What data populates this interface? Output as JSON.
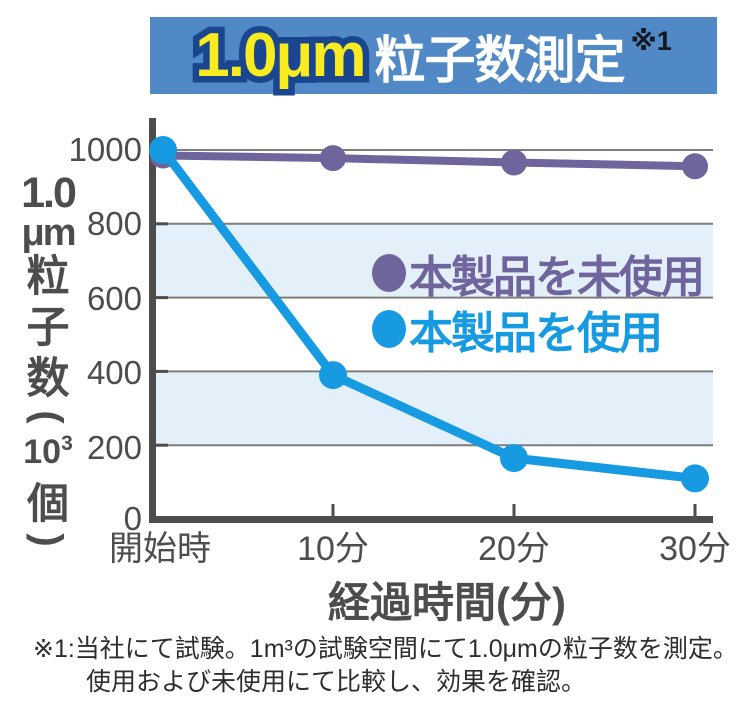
{
  "title": {
    "highlight": "1.0μm",
    "text": "粒子数測定",
    "note_ref": "※1"
  },
  "colors": {
    "banner_bg": "#5189c7",
    "banner_outline": "#1a468f",
    "highlight_yellow": "#f8ec20",
    "title_white": "#ffffff",
    "note_dark": "#14181f",
    "unused_purple": "#6f649c",
    "used_blue": "#169ae1",
    "band_blue": "#e4f0f9",
    "grid_gray": "#7d7d7d",
    "axis_gray": "#4d4d4d",
    "text_gray": "#4d4d4d",
    "footnote_dark": "#2e2e2e"
  },
  "chart_data": {
    "type": "line",
    "title": "1.0μm 粒子数測定 ※1",
    "categories": [
      "開始時",
      "10分",
      "20分",
      "30分"
    ],
    "series": [
      {
        "name": "本製品を未使用",
        "color_key": "unused_purple",
        "values": [
          985,
          978,
          966,
          956
        ]
      },
      {
        "name": "本製品を使用",
        "color_key": "used_blue",
        "values": [
          1000,
          390,
          165,
          110
        ]
      }
    ],
    "xlabel": "経過時間(分)",
    "ylabel": "1.0μm 粒子数(10³個)",
    "ylim": [
      0,
      1080
    ],
    "yticks": [
      0,
      200,
      400,
      600,
      800,
      1000
    ],
    "shaded_bands": [
      [
        600,
        800
      ],
      [
        200,
        400
      ]
    ],
    "grid": "horizontal",
    "legend_position": "inside-right"
  },
  "y_axis": {
    "line1": "1.0",
    "line2": "μm",
    "chars": [
      "粒",
      "子",
      "数"
    ],
    "paren_open": "(",
    "pow_base": "10",
    "pow_exp": "3",
    "unit": "個",
    "paren_close": ")",
    "ticks": [
      "1000",
      "800",
      "600",
      "400",
      "200",
      "0"
    ]
  },
  "footnote": {
    "line1": "※1:当社にて試験。1m³の試験空間にて1.0μmの粒子数を測定。",
    "line2": "使用および未使用にて比較し、効果を確認。"
  }
}
